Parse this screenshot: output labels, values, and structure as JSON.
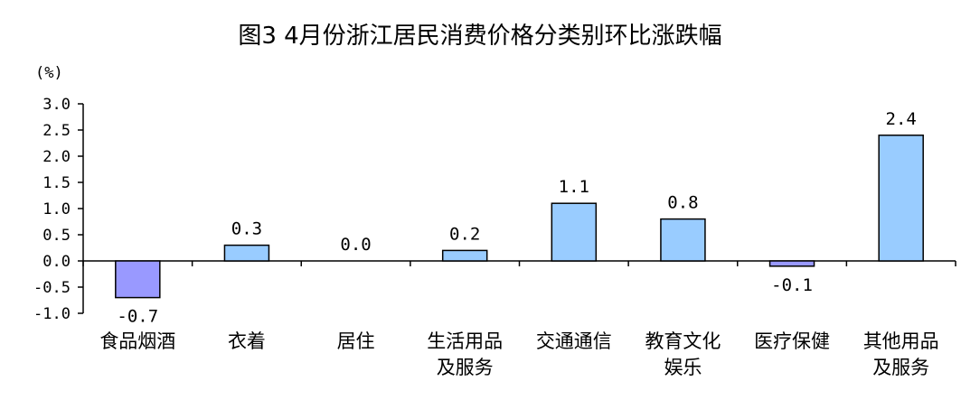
{
  "chart_data": {
    "type": "bar",
    "title": "图3 4月份浙江居民消费价格分类别环比涨跌幅",
    "unit": "(%)",
    "ylim": [
      -1.0,
      3.0
    ],
    "yticks": [
      "3.0",
      "2.5",
      "2.0",
      "1.5",
      "1.0",
      "0.5",
      "0.0",
      "-0.5",
      "-1.0"
    ],
    "grid": false,
    "categories": [
      [
        "食品烟酒"
      ],
      [
        "衣着"
      ],
      [
        "居住"
      ],
      [
        "生活用品",
        "及服务"
      ],
      [
        "交通通信"
      ],
      [
        "教育文化",
        "娱乐"
      ],
      [
        "医疗保健"
      ],
      [
        "其他用品",
        "及服务"
      ]
    ],
    "values": [
      -0.7,
      0.3,
      0.0,
      0.2,
      1.1,
      0.8,
      -0.1,
      2.4
    ],
    "value_labels": [
      "-0.7",
      "0.3",
      "0.0",
      "0.2",
      "1.1",
      "0.8",
      "-0.1",
      "2.4"
    ],
    "colors": {
      "positive": "#99CCFF",
      "negative": "#9999FF",
      "outline": "#000000",
      "axis": "#000000"
    }
  }
}
